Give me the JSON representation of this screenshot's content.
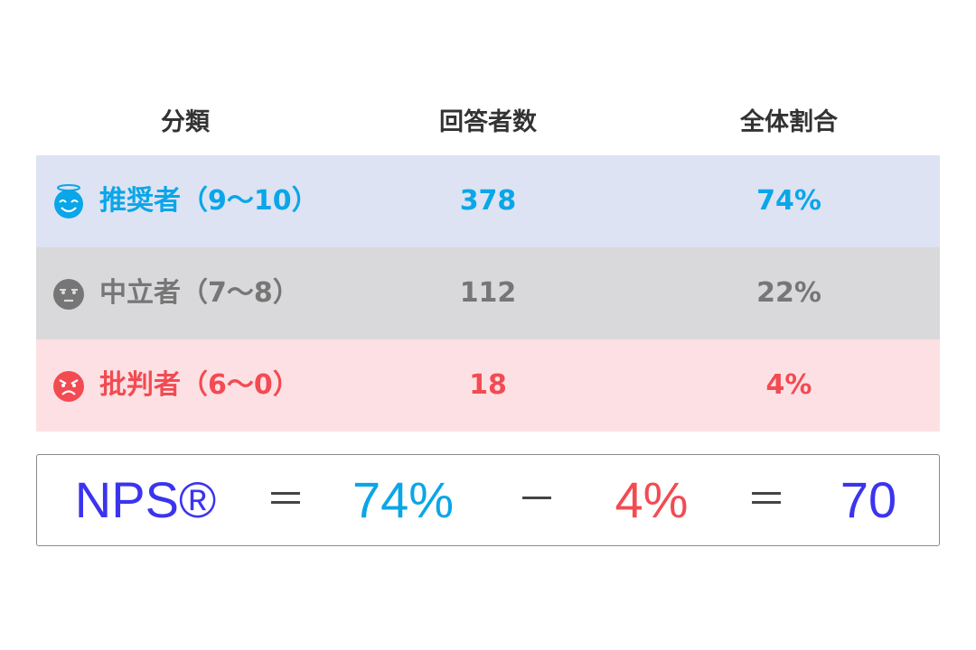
{
  "headers": [
    "分類",
    "回答者数",
    "全体割合"
  ],
  "rows": [
    {
      "label": "推奨者（9～10）",
      "count": "378",
      "share": "74%",
      "icon": "angel-smile-face-icon",
      "color": "#0aa6e8",
      "bg": "#dde3f3"
    },
    {
      "label": "中立者（7～8）",
      "count": "112",
      "share": "22%",
      "icon": "neutral-face-icon",
      "color": "#767676",
      "bg": "#d9d9db"
    },
    {
      "label": "批判者（6～0）",
      "count": "18",
      "share": "4%",
      "icon": "angry-face-icon",
      "color": "#f24b52",
      "bg": "#fde0e4"
    }
  ],
  "formula": {
    "nps": "NPS®",
    "eq1": "＝",
    "promoters": "74%",
    "minus": "－",
    "detractors": "4%",
    "eq2": "＝",
    "result": "70",
    "nps_color": "#3b34ef"
  }
}
